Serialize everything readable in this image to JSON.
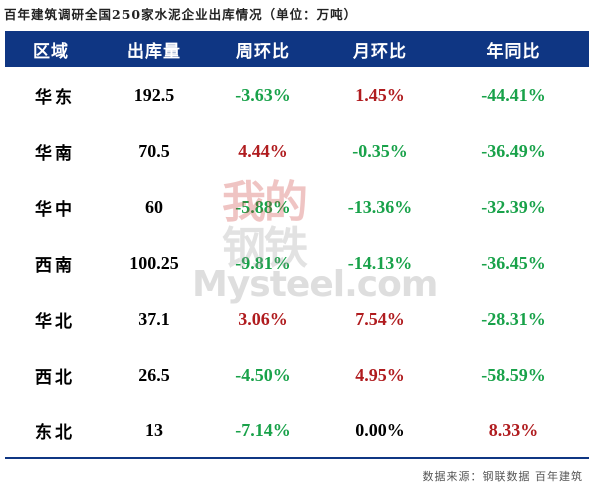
{
  "title": "百年建筑调研全国250家水泥企业出库情况（单位：万吨）",
  "table": {
    "headers": [
      "区域",
      "出库量",
      "周环比",
      "月环比",
      "年同比"
    ],
    "rows": [
      {
        "region": "华东",
        "volume": "192.5",
        "wow": "-3.63%",
        "mom": "1.45%",
        "yoy": "-44.41%"
      },
      {
        "region": "华南",
        "volume": "70.5",
        "wow": "4.44%",
        "mom": "-0.35%",
        "yoy": "-36.49%"
      },
      {
        "region": "华中",
        "volume": "60",
        "wow": "-5.88%",
        "mom": "-13.36%",
        "yoy": "-32.39%"
      },
      {
        "region": "西南",
        "volume": "100.25",
        "wow": "-9.81%",
        "mom": "-14.13%",
        "yoy": "-36.45%"
      },
      {
        "region": "华北",
        "volume": "37.1",
        "wow": "3.06%",
        "mom": "7.54%",
        "yoy": "-28.31%"
      },
      {
        "region": "西北",
        "volume": "26.5",
        "wow": "-4.50%",
        "mom": "4.95%",
        "yoy": "-58.59%"
      },
      {
        "region": "东北",
        "volume": "13",
        "wow": "-7.14%",
        "mom": "0.00%",
        "yoy": "8.33%"
      }
    ]
  },
  "watermark": {
    "line1": "我的",
    "line2": "钢铁",
    "brand": "Mysteel.com"
  },
  "source": "数据来源：钢联数据 百年建筑",
  "colors": {
    "header_bg": "#0f3683",
    "positive": "#b01c1f",
    "negative": "#19a24a",
    "neutral": "#000000"
  }
}
